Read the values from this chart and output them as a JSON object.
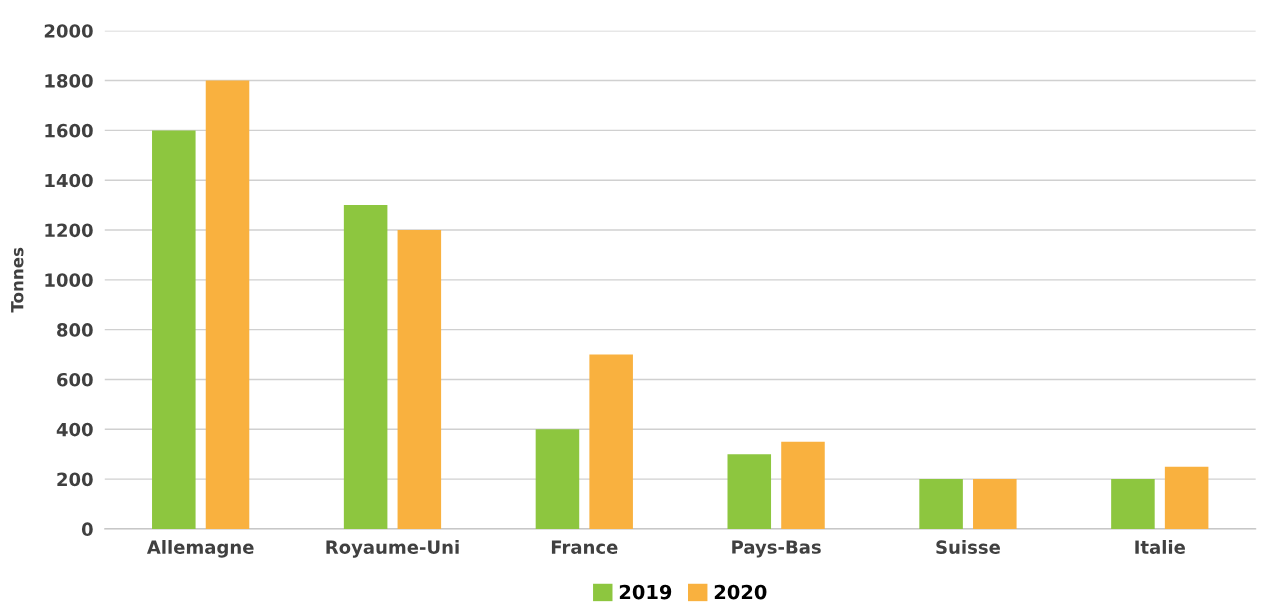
{
  "chart_data": {
    "type": "bar",
    "ylabel": "Tonnes",
    "categories": [
      "Allemagne",
      "Royaume-Uni",
      "France",
      "Pays-Bas",
      "Suisse",
      "Italie"
    ],
    "series": [
      {
        "name": "2019",
        "color": "#8dc63f",
        "values": [
          1600,
          1300,
          400,
          300,
          200,
          200
        ]
      },
      {
        "name": "2020",
        "color": "#f9b13f",
        "values": [
          1800,
          1200,
          700,
          350,
          200,
          250
        ]
      }
    ],
    "ylim": [
      0,
      2000
    ],
    "yticks": [
      0,
      200,
      400,
      600,
      800,
      1000,
      1200,
      1400,
      1600,
      1800,
      2000
    ],
    "grid": "y",
    "legend": "bottom"
  }
}
